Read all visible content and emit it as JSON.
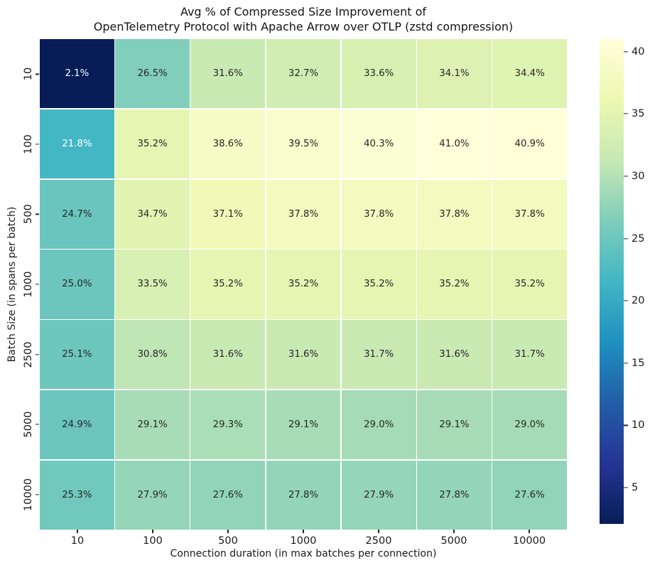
{
  "figure": {
    "background": "#ffffff"
  },
  "chart_data": {
    "type": "heatmap",
    "title": "Avg % of Compressed Size Improvement of\nOpenTelemetry Protocol with Apache Arrow over OTLP (zstd compression)",
    "title_lines": [
      "Avg % of Compressed Size Improvement of",
      "OpenTelemetry Protocol with Apache Arrow over OTLP (zstd compression)"
    ],
    "xlabel": "Connection duration (in max batches per connection)",
    "ylabel": "Batch Size (in spans per batch)",
    "x_categories": [
      "10",
      "100",
      "500",
      "1000",
      "2500",
      "5000",
      "10000"
    ],
    "y_categories": [
      "10",
      "100",
      "500",
      "1000",
      "2500",
      "5000",
      "10000"
    ],
    "values": [
      [
        2.1,
        26.5,
        31.6,
        32.7,
        33.6,
        34.1,
        34.4
      ],
      [
        21.8,
        35.2,
        38.6,
        39.5,
        40.3,
        41.0,
        40.9
      ],
      [
        24.7,
        34.7,
        37.1,
        37.8,
        37.8,
        37.8,
        37.8
      ],
      [
        25.0,
        33.5,
        35.2,
        35.2,
        35.2,
        35.2,
        35.2
      ],
      [
        25.1,
        30.8,
        31.6,
        31.6,
        31.7,
        31.6,
        31.7
      ],
      [
        24.9,
        29.1,
        29.3,
        29.1,
        29.0,
        29.1,
        29.0
      ],
      [
        25.3,
        27.9,
        27.6,
        27.8,
        27.9,
        27.8,
        27.6
      ]
    ],
    "annotation_suffix": "%",
    "annotation_decimals": 1,
    "vmin": 2.1,
    "vmax": 41.0,
    "colormap": "YlGnBu_r (low = dark navy, high = pale yellow)",
    "colormap_anchors": [
      {
        "pos": 0.0,
        "color": "#ffffd9"
      },
      {
        "pos": 0.125,
        "color": "#edf8b1"
      },
      {
        "pos": 0.25,
        "color": "#c7e9b4"
      },
      {
        "pos": 0.375,
        "color": "#7fcdbb"
      },
      {
        "pos": 0.5,
        "color": "#41b6c4"
      },
      {
        "pos": 0.625,
        "color": "#1d91c0"
      },
      {
        "pos": 0.75,
        "color": "#225ea8"
      },
      {
        "pos": 0.875,
        "color": "#253494"
      },
      {
        "pos": 1.0,
        "color": "#081d58"
      }
    ],
    "colorbar_ticks": [
      40,
      35,
      30,
      25,
      20,
      15,
      10,
      5
    ],
    "colorbar_position": "right",
    "annotation_colors": {
      "dark": "#262626",
      "light": "#ffffff"
    },
    "text_luminance_threshold": 0.408,
    "cell_divider_color": "#ffffff",
    "axis_text_color": "#1a1a1a",
    "grid": false
  }
}
